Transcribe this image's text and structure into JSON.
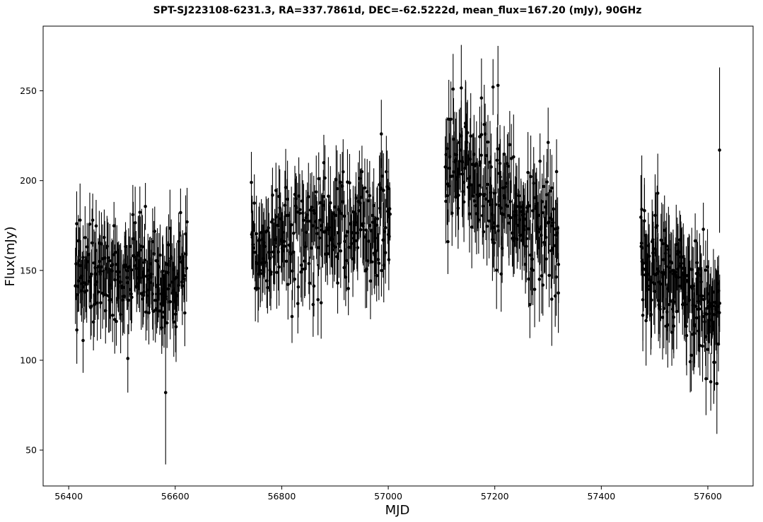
{
  "chart_data": {
    "type": "scatter",
    "title": "SPT-SJ223108-6231.3, RA=337.7861d, DEC=-62.5222d, mean_flux=167.20 (mJy), 90GHz",
    "xlabel": "MJD",
    "ylabel": "Flux(mJy)",
    "xlim": [
      56352,
      57685
    ],
    "ylim": [
      30,
      286
    ],
    "xticks": [
      56400,
      56600,
      56800,
      57000,
      57200,
      57400,
      57600
    ],
    "yticks": [
      50,
      100,
      150,
      200,
      250
    ],
    "grid": false,
    "legend": "none",
    "marker_color": "#000000",
    "errorbar_color": "#000000",
    "seasons": [
      {
        "mjd_start": 56413,
        "mjd_end": 56622,
        "flux_mean": 149,
        "flux_noise": 14,
        "err_min": 13,
        "err_max": 22,
        "count": 210,
        "trend": 0
      },
      {
        "mjd_start": 56743,
        "mjd_end": 57004,
        "flux_mean": 172,
        "flux_noise": 15,
        "err_min": 14,
        "err_max": 22,
        "count": 240,
        "trend": 12
      },
      {
        "mjd_start": 57107,
        "mjd_end": 57320,
        "flux_mean": 190,
        "flux_noise": 18,
        "err_min": 15,
        "err_max": 24,
        "count": 210,
        "trend": -45
      },
      {
        "mjd_start": 57474,
        "mjd_end": 57622,
        "flux_mean": 142,
        "flux_noise": 16,
        "err_min": 14,
        "err_max": 24,
        "count": 180,
        "trend": -30
      }
    ],
    "highlighted_points": [
      {
        "x": 56415,
        "y": 176,
        "err": 18
      },
      {
        "x": 56427,
        "y": 111,
        "err": 18
      },
      {
        "x": 56511,
        "y": 101,
        "err": 19
      },
      {
        "x": 56576,
        "y": 124,
        "err": 16
      },
      {
        "x": 56582,
        "y": 82,
        "err": 40
      },
      {
        "x": 56743,
        "y": 199,
        "err": 17
      },
      {
        "x": 56874,
        "y": 132,
        "err": 20
      },
      {
        "x": 56905,
        "y": 143,
        "err": 17
      },
      {
        "x": 56987,
        "y": 226,
        "err": 19
      },
      {
        "x": 57001,
        "y": 156,
        "err": 17
      },
      {
        "x": 57112,
        "y": 166,
        "err": 18
      },
      {
        "x": 57145,
        "y": 232,
        "err": 24
      },
      {
        "x": 57175,
        "y": 246,
        "err": 22
      },
      {
        "x": 57206,
        "y": 253,
        "err": 22
      },
      {
        "x": 57212,
        "y": 148,
        "err": 21
      },
      {
        "x": 57288,
        "y": 147,
        "err": 21
      },
      {
        "x": 57307,
        "y": 134,
        "err": 26
      },
      {
        "x": 57316,
        "y": 205,
        "err": 18
      },
      {
        "x": 57476,
        "y": 184,
        "err": 30
      },
      {
        "x": 57478,
        "y": 125,
        "err": 20
      },
      {
        "x": 57484,
        "y": 122,
        "err": 25
      },
      {
        "x": 57506,
        "y": 193,
        "err": 22
      },
      {
        "x": 57536,
        "y": 119,
        "err": 18
      },
      {
        "x": 57600,
        "y": 106,
        "err": 17
      },
      {
        "x": 57617,
        "y": 87,
        "err": 28
      },
      {
        "x": 57620,
        "y": 130,
        "err": 20
      },
      {
        "x": 57622,
        "y": 217,
        "err": 46
      }
    ]
  }
}
